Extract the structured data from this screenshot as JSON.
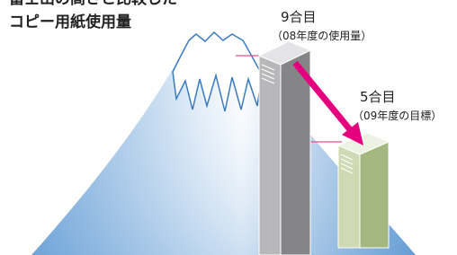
{
  "header": {
    "title_line1": "富士山の高さと比較した",
    "title_line2": "コピー用紙使用量"
  },
  "labels": [
    {
      "level": "9合目",
      "note": "（08年度の使用量）"
    },
    {
      "level": "5合目",
      "note": "（09年度の目標）"
    }
  ]
}
